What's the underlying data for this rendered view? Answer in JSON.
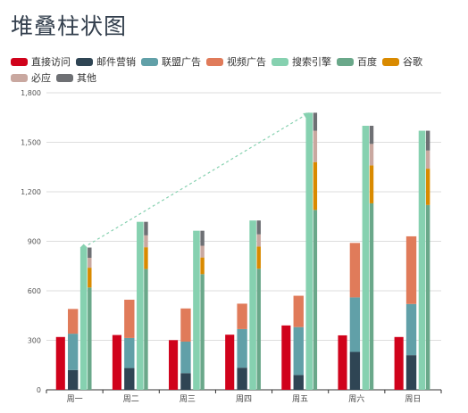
{
  "chart_data": {
    "type": "bar",
    "title": "堆叠柱状图",
    "categories": [
      "周一",
      "周二",
      "周三",
      "周四",
      "周五",
      "周六",
      "周日"
    ],
    "ylim": [
      0,
      1800
    ],
    "yticks": [
      0,
      300,
      600,
      900,
      1200,
      1500,
      1800
    ],
    "ytick_labels": [
      "0",
      "300",
      "600",
      "900",
      "1,200",
      "1,500",
      "1,800"
    ],
    "grid": true,
    "legend_position": "top",
    "series": [
      {
        "name": "直接访问",
        "group": "direct",
        "color": "#d0021b",
        "values": [
          320,
          332,
          301,
          334,
          390,
          330,
          320
        ]
      },
      {
        "name": "邮件营销",
        "group": "ad",
        "color": "#2f4554",
        "values": [
          120,
          132,
          101,
          134,
          90,
          230,
          210
        ]
      },
      {
        "name": "联盟广告",
        "group": "ad",
        "color": "#61a0a8",
        "values": [
          220,
          182,
          191,
          234,
          290,
          330,
          310
        ]
      },
      {
        "name": "视频广告",
        "group": "ad",
        "color": "#e07b5a",
        "values": [
          150,
          232,
          201,
          154,
          190,
          330,
          410
        ]
      },
      {
        "name": "搜索引擎",
        "group": "search_total",
        "color": "#86d1b0",
        "values": [
          862,
          1018,
          964,
          1026,
          1679,
          1600,
          1570
        ]
      },
      {
        "name": "百度",
        "group": "search",
        "color": "#6aa88a",
        "values": [
          620,
          732,
          701,
          734,
          1090,
          1130,
          1120
        ]
      },
      {
        "name": "谷歌",
        "group": "search",
        "color": "#d98a00",
        "values": [
          120,
          132,
          101,
          134,
          290,
          230,
          220
        ]
      },
      {
        "name": "必应",
        "group": "search",
        "color": "#c9a8a0",
        "values": [
          60,
          72,
          71,
          74,
          190,
          130,
          110
        ]
      },
      {
        "name": "其他",
        "group": "search",
        "color": "#6e7074",
        "values": [
          62,
          82,
          91,
          84,
          109,
          110,
          120
        ]
      }
    ],
    "markline": {
      "from_category": "周一",
      "from_value": 862,
      "to_category": "周五",
      "to_value": 1679,
      "color": "#86d1b0",
      "style": "dashed"
    }
  }
}
